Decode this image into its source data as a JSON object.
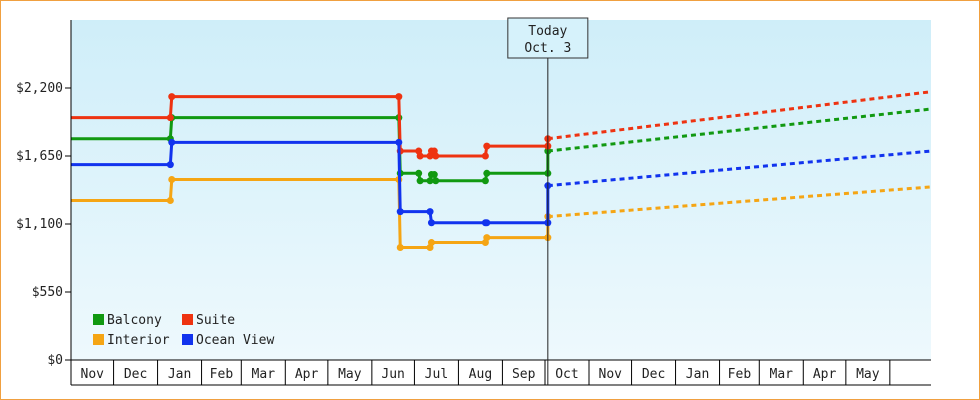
{
  "chart_data": {
    "type": "line",
    "title": "",
    "xlabel": "",
    "ylabel": "",
    "ylim": [
      0,
      2750
    ],
    "y_ticks": [
      {
        "value": 0,
        "label": "$0"
      },
      {
        "value": 550,
        "label": "$550"
      },
      {
        "value": 1100,
        "label": "$1,100"
      },
      {
        "value": 1650,
        "label": "$1,650"
      },
      {
        "value": 2200,
        "label": "$2,200"
      }
    ],
    "x_start": "2024-11-01",
    "x_end": "2026-06-30",
    "x_ticks": [
      "Nov",
      "Dec",
      "Jan",
      "Feb",
      "Mar",
      "Apr",
      "May",
      "Jun",
      "Jul",
      "Aug",
      "Sep",
      "Oct",
      "Nov",
      "Dec",
      "Jan",
      "Feb",
      "Mar",
      "Apr",
      "May"
    ],
    "today": {
      "line1": "Today",
      "line2": "Oct. 3",
      "date": "2025-10-03"
    },
    "background_gradient": [
      "#cfeef9",
      "#eef9fd"
    ],
    "legend_position": "bottom-left",
    "series": [
      {
        "name": "Balcony",
        "color": "#119911",
        "points": [
          {
            "date": "2024-11-01",
            "value": 1790
          },
          {
            "date": "2025-01-10",
            "value": 1790
          },
          {
            "date": "2025-01-11",
            "value": 1960
          },
          {
            "date": "2025-06-20",
            "value": 1960
          },
          {
            "date": "2025-06-21",
            "value": 1510
          },
          {
            "date": "2025-07-04",
            "value": 1510
          },
          {
            "date": "2025-07-05",
            "value": 1450
          },
          {
            "date": "2025-07-12",
            "value": 1450
          },
          {
            "date": "2025-07-13",
            "value": 1500
          },
          {
            "date": "2025-07-15",
            "value": 1500
          },
          {
            "date": "2025-07-16",
            "value": 1450
          },
          {
            "date": "2025-08-20",
            "value": 1450
          },
          {
            "date": "2025-08-21",
            "value": 1510
          },
          {
            "date": "2025-10-03",
            "value": 1510
          },
          {
            "date": "2025-10-03",
            "value": 1690
          }
        ],
        "forecast": [
          {
            "date": "2025-10-03",
            "value": 1690
          },
          {
            "date": "2026-06-30",
            "value": 2030
          }
        ]
      },
      {
        "name": "Suite",
        "color": "#ee3311",
        "points": [
          {
            "date": "2024-11-01",
            "value": 1960
          },
          {
            "date": "2025-01-10",
            "value": 1960
          },
          {
            "date": "2025-01-11",
            "value": 2130
          },
          {
            "date": "2025-06-20",
            "value": 2130
          },
          {
            "date": "2025-06-21",
            "value": 1690
          },
          {
            "date": "2025-07-04",
            "value": 1690
          },
          {
            "date": "2025-07-05",
            "value": 1650
          },
          {
            "date": "2025-07-12",
            "value": 1650
          },
          {
            "date": "2025-07-13",
            "value": 1690
          },
          {
            "date": "2025-07-15",
            "value": 1690
          },
          {
            "date": "2025-07-16",
            "value": 1650
          },
          {
            "date": "2025-08-20",
            "value": 1650
          },
          {
            "date": "2025-08-21",
            "value": 1730
          },
          {
            "date": "2025-10-03",
            "value": 1730
          },
          {
            "date": "2025-10-03",
            "value": 1790
          }
        ],
        "forecast": [
          {
            "date": "2025-10-03",
            "value": 1790
          },
          {
            "date": "2026-06-30",
            "value": 2170
          }
        ]
      },
      {
        "name": "Interior",
        "color": "#f5a514",
        "points": [
          {
            "date": "2024-11-01",
            "value": 1290
          },
          {
            "date": "2025-01-10",
            "value": 1290
          },
          {
            "date": "2025-01-11",
            "value": 1460
          },
          {
            "date": "2025-06-20",
            "value": 1460
          },
          {
            "date": "2025-06-21",
            "value": 910
          },
          {
            "date": "2025-07-12",
            "value": 910
          },
          {
            "date": "2025-07-13",
            "value": 950
          },
          {
            "date": "2025-08-20",
            "value": 950
          },
          {
            "date": "2025-08-21",
            "value": 990
          },
          {
            "date": "2025-10-03",
            "value": 990
          },
          {
            "date": "2025-10-03",
            "value": 1160
          }
        ],
        "forecast": [
          {
            "date": "2025-10-03",
            "value": 1160
          },
          {
            "date": "2026-06-30",
            "value": 1400
          }
        ]
      },
      {
        "name": "Ocean View",
        "color": "#1133ee",
        "points": [
          {
            "date": "2024-11-01",
            "value": 1580
          },
          {
            "date": "2025-01-10",
            "value": 1580
          },
          {
            "date": "2025-01-11",
            "value": 1760
          },
          {
            "date": "2025-06-20",
            "value": 1760
          },
          {
            "date": "2025-06-21",
            "value": 1200
          },
          {
            "date": "2025-07-12",
            "value": 1200
          },
          {
            "date": "2025-07-13",
            "value": 1110
          },
          {
            "date": "2025-08-20",
            "value": 1110
          },
          {
            "date": "2025-08-21",
            "value": 1110
          },
          {
            "date": "2025-10-03",
            "value": 1110
          },
          {
            "date": "2025-10-03",
            "value": 1410
          }
        ],
        "forecast": [
          {
            "date": "2025-10-03",
            "value": 1410
          },
          {
            "date": "2026-06-30",
            "value": 1690
          }
        ]
      }
    ]
  }
}
